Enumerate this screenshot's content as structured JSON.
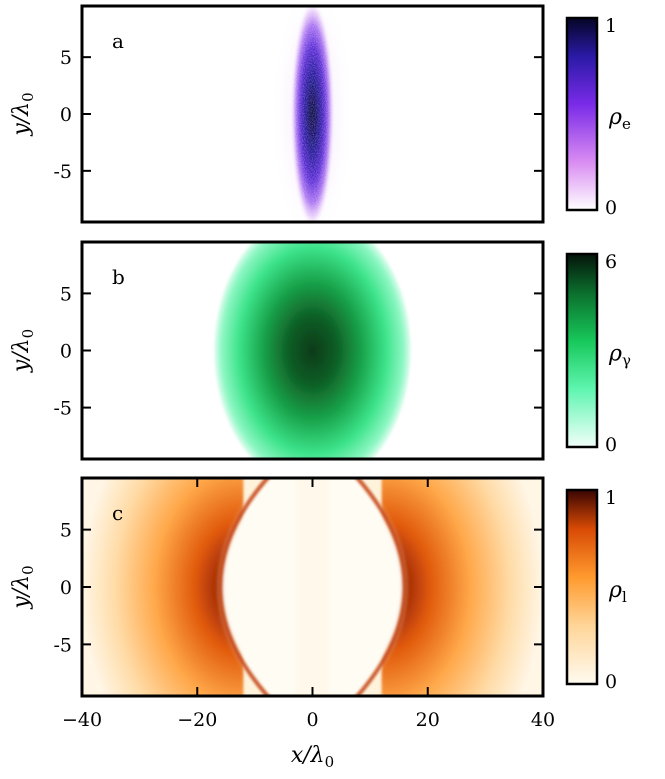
{
  "chart_data": [
    {
      "type": "heatmap",
      "panel_label": "a",
      "ylabel": "y/λ0",
      "ylabel_main": "y/λ",
      "ylabel_sub": "0",
      "yticks": [
        5,
        0,
        -5
      ],
      "ytick_labels": [
        "5",
        "0",
        "-5"
      ],
      "ylim": [
        -9.5,
        9.5
      ],
      "xlim": [
        -40,
        40
      ],
      "colorbar": {
        "label_main": "ρ",
        "label_sub": "e",
        "min": 0,
        "max": 1,
        "min_label": "0",
        "max_label": "1",
        "colors": [
          "#ffffff",
          "#d98cf2",
          "#7a2be8",
          "#2a1aa6",
          "#050526"
        ]
      },
      "features": [
        {
          "shape": "ellipse",
          "cx": 0,
          "cy": 0,
          "rx": 3.6,
          "ry": 9.5,
          "peak": 1
        }
      ]
    },
    {
      "type": "heatmap",
      "panel_label": "b",
      "ylabel": "y/λ0",
      "ylabel_main": "y/λ",
      "ylabel_sub": "0",
      "yticks": [
        5,
        0,
        -5
      ],
      "ytick_labels": [
        "5",
        "0",
        "-5"
      ],
      "ylim": [
        -9.5,
        9.5
      ],
      "xlim": [
        -40,
        40
      ],
      "colorbar": {
        "label_main": "ρ",
        "label_sub": "γ",
        "min": 0,
        "max": 6,
        "min_label": "0",
        "max_label": "6",
        "colors": [
          "#f2fffa",
          "#5ff5b0",
          "#17c85a",
          "#0b6e2c",
          "#04140a"
        ]
      },
      "features": [
        {
          "shape": "ellipse",
          "cx": 0,
          "cy": 0,
          "rx": 17,
          "ry": 12,
          "peak": 6
        }
      ]
    },
    {
      "type": "heatmap",
      "panel_label": "c",
      "ylabel": "y/λ0",
      "ylabel_main": "y/λ",
      "ylabel_sub": "0",
      "xlabel": "x/λ0",
      "xlabel_main": "x/λ",
      "xlabel_sub": "0",
      "yticks": [
        5,
        0,
        -5
      ],
      "ytick_labels": [
        "5",
        "0",
        "-5"
      ],
      "xticks": [
        -40,
        -20,
        0,
        20,
        40
      ],
      "xtick_labels": [
        "−40",
        "−20",
        "0",
        "20",
        "40"
      ],
      "ylim": [
        -9.5,
        9.5
      ],
      "xlim": [
        -40,
        40
      ],
      "colorbar": {
        "label_main": "ρ",
        "label_sub": "l",
        "min": 0,
        "max": 1,
        "min_label": "0",
        "max_label": "1",
        "colors": [
          "#fffbf0",
          "#ffd599",
          "#ff9a2e",
          "#d84a05",
          "#3a0502"
        ]
      },
      "features": [
        {
          "shape": "lobe",
          "cx": -19,
          "cy": 0,
          "peak": 1
        },
        {
          "shape": "lobe",
          "cx": 19,
          "cy": 0,
          "peak": 1
        },
        {
          "shape": "arc",
          "x_at_center": -16.5,
          "x_at_edge": -7.5
        },
        {
          "shape": "arc",
          "x_at_center": 16.5,
          "x_at_edge": 7.5
        }
      ]
    }
  ]
}
